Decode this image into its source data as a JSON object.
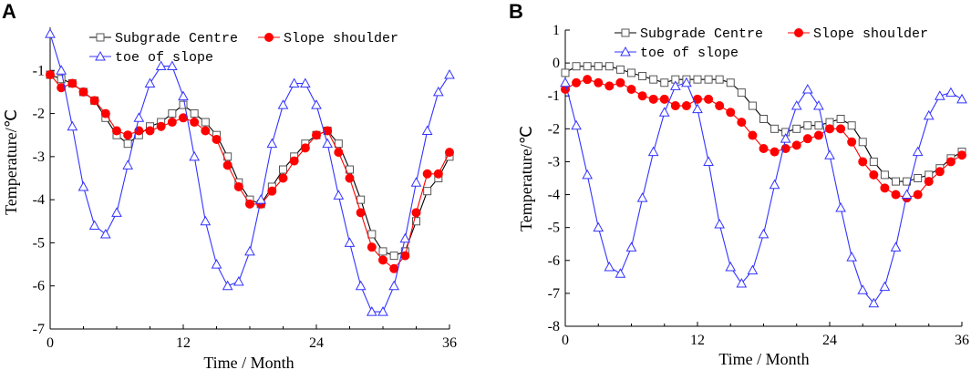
{
  "chart_data": [
    {
      "panel": "A",
      "type": "line",
      "xlabel": "Time / Month",
      "ylabel": "Temperature/℃",
      "xlim": [
        0,
        36
      ],
      "ylim": [
        -7,
        0
      ],
      "xticks": [
        "0",
        "12",
        "24",
        "36"
      ],
      "yticks": [
        "-7",
        "-6",
        "-5",
        "-4",
        "-3",
        "-2",
        "-1"
      ],
      "legend": [
        "Subgrade Centre",
        "Slope shoulder",
        "toe of slope"
      ],
      "series": [
        {
          "name": "Subgrade Centre",
          "marker": "square",
          "color": "#000000",
          "x": [
            0,
            1,
            2,
            3,
            4,
            5,
            6,
            7,
            8,
            9,
            10,
            11,
            12,
            13,
            14,
            15,
            16,
            17,
            18,
            19,
            20,
            21,
            22,
            23,
            24,
            25,
            26,
            27,
            28,
            29,
            30,
            31,
            32,
            33,
            34,
            35,
            36
          ],
          "y": [
            -1.1,
            -1.2,
            -1.3,
            -1.5,
            -1.7,
            -2.1,
            -2.5,
            -2.7,
            -2.5,
            -2.3,
            -2.2,
            -2.0,
            -1.8,
            -2.0,
            -2.2,
            -2.5,
            -3.0,
            -3.6,
            -4.0,
            -4.1,
            -3.7,
            -3.3,
            -3.0,
            -2.7,
            -2.5,
            -2.4,
            -2.7,
            -3.3,
            -4.0,
            -4.8,
            -5.2,
            -5.3,
            -5.2,
            -4.5,
            -3.8,
            -3.5,
            -3.0
          ]
        },
        {
          "name": "Slope shoulder",
          "marker": "circle",
          "color": "#ff0000",
          "x": [
            0,
            1,
            2,
            3,
            4,
            5,
            6,
            7,
            8,
            9,
            10,
            11,
            12,
            13,
            14,
            15,
            16,
            17,
            18,
            19,
            20,
            21,
            22,
            23,
            24,
            25,
            26,
            27,
            28,
            29,
            30,
            31,
            32,
            33,
            34,
            35,
            36
          ],
          "y": [
            -1.1,
            -1.4,
            -1.3,
            -1.5,
            -1.7,
            -2.0,
            -2.4,
            -2.5,
            -2.4,
            -2.4,
            -2.3,
            -2.2,
            -2.1,
            -2.2,
            -2.4,
            -2.6,
            -3.2,
            -3.7,
            -4.1,
            -4.1,
            -3.8,
            -3.5,
            -3.1,
            -2.8,
            -2.5,
            -2.4,
            -2.9,
            -3.5,
            -4.3,
            -5.1,
            -5.4,
            -5.6,
            -5.3,
            -4.3,
            -3.4,
            -3.4,
            -2.9
          ]
        },
        {
          "name": "toe of slope",
          "marker": "triangle",
          "color": "#3333ff",
          "x": [
            0,
            1,
            2,
            3,
            4,
            5,
            6,
            7,
            8,
            9,
            10,
            11,
            12,
            13,
            14,
            15,
            16,
            17,
            18,
            19,
            20,
            21,
            22,
            23,
            24,
            25,
            26,
            27,
            28,
            29,
            30,
            31,
            32,
            33,
            34,
            35,
            36
          ],
          "y": [
            -0.15,
            -1.0,
            -2.3,
            -3.7,
            -4.6,
            -4.8,
            -4.3,
            -3.2,
            -2.1,
            -1.3,
            -0.9,
            -0.9,
            -1.6,
            -3.0,
            -4.5,
            -5.5,
            -6.0,
            -5.9,
            -5.2,
            -4.0,
            -2.7,
            -1.8,
            -1.3,
            -1.3,
            -1.8,
            -2.7,
            -3.9,
            -5.0,
            -6.0,
            -6.6,
            -6.6,
            -6.0,
            -4.9,
            -3.6,
            -2.4,
            -1.5,
            -1.1
          ]
        }
      ]
    },
    {
      "panel": "B",
      "type": "line",
      "xlabel": "Time / Month",
      "ylabel": "Temperature/℃",
      "xlim": [
        0,
        36
      ],
      "ylim": [
        -8,
        1
      ],
      "xticks": [
        "0",
        "12",
        "24",
        "36"
      ],
      "yticks": [
        "-8",
        "-7",
        "-6",
        "-5",
        "-4",
        "-3",
        "-2",
        "-1",
        "0",
        "1"
      ],
      "legend": [
        "Subgrade Centre",
        "Slope shoulder",
        "toe of slope"
      ],
      "series": [
        {
          "name": "Subgrade Centre",
          "marker": "square",
          "color": "#000000",
          "x": [
            0,
            1,
            2,
            3,
            4,
            5,
            6,
            7,
            8,
            9,
            10,
            11,
            12,
            13,
            14,
            15,
            16,
            17,
            18,
            19,
            20,
            21,
            22,
            23,
            24,
            25,
            26,
            27,
            28,
            29,
            30,
            31,
            32,
            33,
            34,
            35,
            36
          ],
          "y": [
            -0.3,
            -0.1,
            -0.1,
            -0.1,
            -0.1,
            -0.2,
            -0.3,
            -0.4,
            -0.5,
            -0.6,
            -0.5,
            -0.5,
            -0.5,
            -0.5,
            -0.5,
            -0.6,
            -0.9,
            -1.3,
            -1.7,
            -2.0,
            -2.1,
            -2.0,
            -1.9,
            -1.9,
            -1.8,
            -1.7,
            -1.9,
            -2.4,
            -3.0,
            -3.4,
            -3.6,
            -3.6,
            -3.5,
            -3.4,
            -3.2,
            -2.9,
            -2.7
          ]
        },
        {
          "name": "Slope shoulder",
          "marker": "circle",
          "color": "#ff0000",
          "x": [
            0,
            1,
            2,
            3,
            4,
            5,
            6,
            7,
            8,
            9,
            10,
            11,
            12,
            13,
            14,
            15,
            16,
            17,
            18,
            19,
            20,
            21,
            22,
            23,
            24,
            25,
            26,
            27,
            28,
            29,
            30,
            31,
            32,
            33,
            34,
            35,
            36
          ],
          "y": [
            -0.8,
            -0.6,
            -0.5,
            -0.6,
            -0.7,
            -0.6,
            -0.8,
            -1.0,
            -1.1,
            -1.1,
            -1.3,
            -1.3,
            -1.1,
            -1.1,
            -1.3,
            -1.5,
            -1.8,
            -2.2,
            -2.6,
            -2.7,
            -2.6,
            -2.5,
            -2.3,
            -2.2,
            -2.0,
            -2.0,
            -2.4,
            -3.0,
            -3.4,
            -3.8,
            -4.0,
            -4.1,
            -4.0,
            -3.6,
            -3.3,
            -3.0,
            -2.8
          ]
        },
        {
          "name": "toe of slope",
          "marker": "triangle",
          "color": "#3333ff",
          "x": [
            0,
            1,
            2,
            3,
            4,
            5,
            6,
            7,
            8,
            9,
            10,
            11,
            12,
            13,
            14,
            15,
            16,
            17,
            18,
            19,
            20,
            21,
            22,
            23,
            24,
            25,
            26,
            27,
            28,
            29,
            30,
            31,
            32,
            33,
            34,
            35,
            36
          ],
          "y": [
            -0.6,
            -1.9,
            -3.4,
            -5.0,
            -6.2,
            -6.4,
            -5.6,
            -4.1,
            -2.7,
            -1.5,
            -0.7,
            -0.6,
            -1.4,
            -3.0,
            -4.9,
            -6.2,
            -6.7,
            -6.3,
            -5.2,
            -3.7,
            -2.3,
            -1.3,
            -0.8,
            -1.3,
            -2.8,
            -4.4,
            -5.9,
            -6.9,
            -7.3,
            -6.8,
            -5.6,
            -4.0,
            -2.7,
            -1.6,
            -1.0,
            -0.9,
            -1.1
          ]
        }
      ]
    }
  ]
}
